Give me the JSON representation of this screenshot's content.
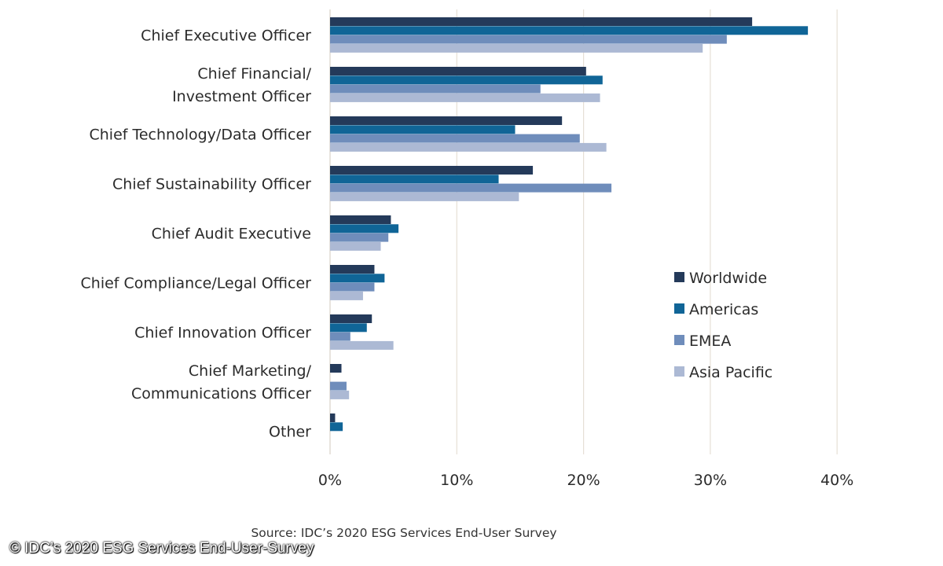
{
  "chart_data": {
    "type": "bar",
    "orientation": "horizontal",
    "categories": [
      [
        "Chief Executive Officer"
      ],
      [
        "Chief Financial/",
        "Investment Officer"
      ],
      [
        "Chief Technology/Data Officer"
      ],
      [
        "Chief Sustainability Officer"
      ],
      [
        "Chief Audit Executive"
      ],
      [
        "Chief Compliance/Legal Officer"
      ],
      [
        "Chief Innovation Officer"
      ],
      [
        "Chief Marketing/",
        "Communications Officer"
      ],
      [
        "Other"
      ]
    ],
    "series": [
      {
        "name": "Worldwide",
        "color": "#243a5a",
        "values": [
          33.3,
          20.2,
          18.3,
          16.0,
          4.8,
          3.5,
          3.3,
          0.9,
          0.4
        ]
      },
      {
        "name": "Americas",
        "color": "#106597",
        "values": [
          37.7,
          21.5,
          14.6,
          13.3,
          5.4,
          4.3,
          2.9,
          0.0,
          1.0
        ]
      },
      {
        "name": "EMEA",
        "color": "#6f8dbb",
        "values": [
          31.3,
          16.6,
          19.7,
          22.2,
          4.6,
          3.5,
          1.6,
          1.3,
          0.0
        ]
      },
      {
        "name": "Asia Pacific",
        "color": "#acb9d4",
        "values": [
          29.4,
          21.3,
          21.8,
          14.9,
          4.0,
          2.6,
          5.0,
          1.5,
          0.0
        ]
      }
    ],
    "xlim": [
      0,
      40
    ],
    "xticks": [
      0,
      10,
      20,
      30,
      40
    ],
    "xtick_labels": [
      "0%",
      "10%",
      "20%",
      "30%",
      "40%"
    ],
    "grid": true,
    "legend_position": "right",
    "title": "",
    "xlabel": "",
    "ylabel": ""
  },
  "source": "Source: IDC’s 2020 ESG Services End-User Survey",
  "watermark": "© IDC’s 2020 ESG Services End-User-Survey"
}
